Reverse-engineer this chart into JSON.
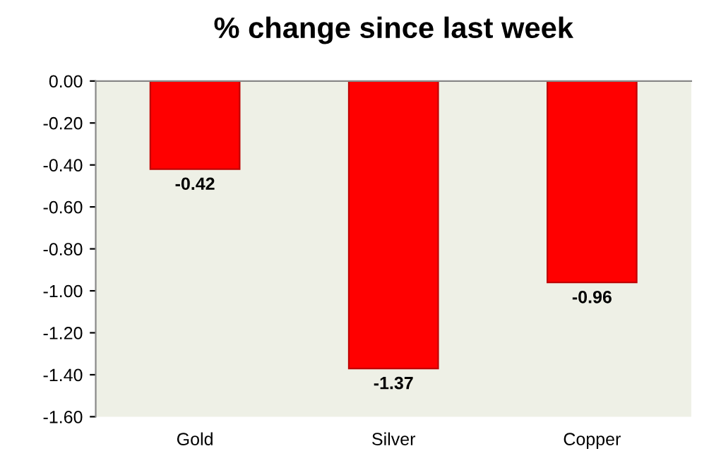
{
  "chart_data": {
    "type": "bar",
    "title": "% change since last week",
    "categories": [
      "Gold",
      "Silver",
      "Copper"
    ],
    "values": [
      -0.42,
      -1.37,
      -0.96
    ],
    "value_labels": [
      "-0.42",
      "-1.37",
      "-0.96"
    ],
    "color": "#ff0000",
    "ylim": [
      -1.6,
      0
    ],
    "yticks": [
      {
        "value": 0,
        "label": "0.00"
      },
      {
        "value": -0.2,
        "label": "-0.20"
      },
      {
        "value": -0.4,
        "label": "-0.40"
      },
      {
        "value": -0.6,
        "label": "-0.60"
      },
      {
        "value": -0.8,
        "label": "-0.80"
      },
      {
        "value": -1.0,
        "label": "-1.00"
      },
      {
        "value": -1.2,
        "label": "-1.20"
      },
      {
        "value": -1.4,
        "label": "-1.40"
      },
      {
        "value": -1.6,
        "label": "-1.60"
      }
    ],
    "grid": false,
    "legend": false
  }
}
